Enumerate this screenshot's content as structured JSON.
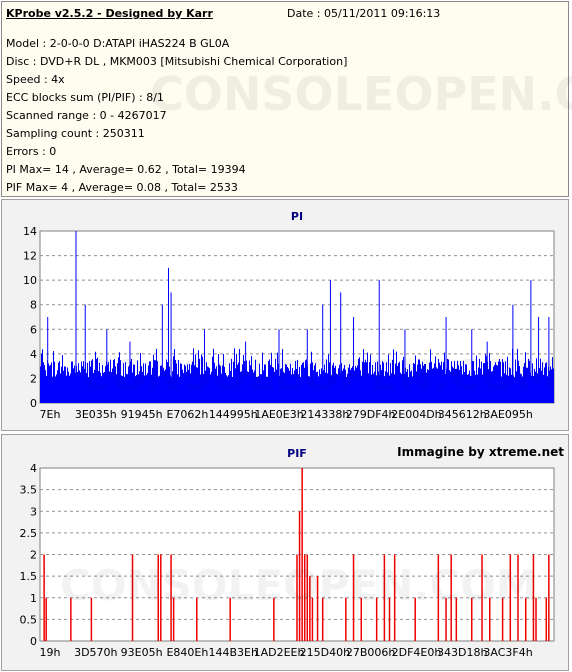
{
  "info": {
    "title": "KProbe v2.5.2 - Designed by Karr",
    "date": "Date : 05/11/2011 09:16:13",
    "lines": [
      "Model : 2-0-0-0 D:ATAPI  iHAS224   B      GL0A",
      "Disc : DVD+R DL , MKM003 [Mitsubishi Chemical Corporation]",
      "Speed : 4x",
      "ECC blocks sum (PI/PIF) : 8/1",
      "Scanned range : 0 - 4267017",
      "Sampling count : 250311",
      "Errors : 0",
      "PI Max= 14 , Average= 0.62 , Total= 19394",
      "PIF Max= 4 , Average= 0.08 , Total= 2533"
    ]
  },
  "watermark_text": "CONSOLEOPEN.COM",
  "chart_data": [
    {
      "type": "bar",
      "title": "PI",
      "series_color": "#0000ff",
      "ylim": [
        0,
        14
      ],
      "yticks": [
        0,
        2,
        4,
        6,
        8,
        10,
        12,
        14
      ],
      "xticks": [
        "7Eh",
        "3E035h",
        "91945h",
        "E7062h",
        "144995h",
        "1AE0E3h",
        "214338h",
        "279DF4h",
        "2E004Dh",
        "345612h",
        "3AE095h"
      ],
      "grid": true,
      "x_extent": 4267017,
      "peaks": [
        {
          "x": 0.07,
          "y": 14
        },
        {
          "x": 0.088,
          "y": 8
        },
        {
          "x": 0.25,
          "y": 11
        },
        {
          "x": 0.238,
          "y": 8
        },
        {
          "x": 0.255,
          "y": 9
        },
        {
          "x": 0.015,
          "y": 7
        },
        {
          "x": 0.13,
          "y": 6
        },
        {
          "x": 0.175,
          "y": 5
        },
        {
          "x": 0.32,
          "y": 6
        },
        {
          "x": 0.4,
          "y": 5
        },
        {
          "x": 0.465,
          "y": 6
        },
        {
          "x": 0.52,
          "y": 6
        },
        {
          "x": 0.55,
          "y": 8
        },
        {
          "x": 0.565,
          "y": 10
        },
        {
          "x": 0.585,
          "y": 9
        },
        {
          "x": 0.61,
          "y": 7
        },
        {
          "x": 0.66,
          "y": 10
        },
        {
          "x": 0.71,
          "y": 6
        },
        {
          "x": 0.79,
          "y": 7
        },
        {
          "x": 0.84,
          "y": 6
        },
        {
          "x": 0.87,
          "y": 5
        },
        {
          "x": 0.92,
          "y": 8
        },
        {
          "x": 0.955,
          "y": 10
        },
        {
          "x": 0.97,
          "y": 7
        },
        {
          "x": 0.99,
          "y": 7
        }
      ],
      "baseline_level": 3
    },
    {
      "type": "bar",
      "title": "PIF",
      "series_color": "#ee0000",
      "ylim": [
        0,
        4
      ],
      "yticks": [
        0,
        0.5,
        1,
        1.5,
        2,
        2.5,
        3,
        3.5,
        4
      ],
      "xticks": [
        "19h",
        "3D570h",
        "93E05h",
        "E840Eh",
        "144B3Eh",
        "1AD2EEh",
        "215D40h",
        "27B006h",
        "2DF4E0h",
        "343D18h",
        "3AC3F4h"
      ],
      "grid": true,
      "credit": "Immagine by xtreme.net",
      "x_extent": 4267017,
      "bars": [
        {
          "x": 0.008,
          "y": 2
        },
        {
          "x": 0.012,
          "y": 1
        },
        {
          "x": 0.06,
          "y": 1
        },
        {
          "x": 0.1,
          "y": 1
        },
        {
          "x": 0.18,
          "y": 2
        },
        {
          "x": 0.23,
          "y": 2
        },
        {
          "x": 0.235,
          "y": 2
        },
        {
          "x": 0.255,
          "y": 2
        },
        {
          "x": 0.26,
          "y": 1
        },
        {
          "x": 0.305,
          "y": 1
        },
        {
          "x": 0.37,
          "y": 1
        },
        {
          "x": 0.455,
          "y": 1
        },
        {
          "x": 0.5,
          "y": 2
        },
        {
          "x": 0.505,
          "y": 3
        },
        {
          "x": 0.51,
          "y": 4
        },
        {
          "x": 0.515,
          "y": 2
        },
        {
          "x": 0.52,
          "y": 2
        },
        {
          "x": 0.525,
          "y": 1.5
        },
        {
          "x": 0.53,
          "y": 1
        },
        {
          "x": 0.54,
          "y": 1.5
        },
        {
          "x": 0.55,
          "y": 1
        },
        {
          "x": 0.595,
          "y": 1
        },
        {
          "x": 0.61,
          "y": 2
        },
        {
          "x": 0.625,
          "y": 1
        },
        {
          "x": 0.655,
          "y": 1
        },
        {
          "x": 0.67,
          "y": 2
        },
        {
          "x": 0.68,
          "y": 1
        },
        {
          "x": 0.69,
          "y": 2
        },
        {
          "x": 0.73,
          "y": 1
        },
        {
          "x": 0.775,
          "y": 2
        },
        {
          "x": 0.79,
          "y": 1
        },
        {
          "x": 0.8,
          "y": 2
        },
        {
          "x": 0.81,
          "y": 1
        },
        {
          "x": 0.84,
          "y": 1
        },
        {
          "x": 0.86,
          "y": 2
        },
        {
          "x": 0.875,
          "y": 1
        },
        {
          "x": 0.9,
          "y": 1
        },
        {
          "x": 0.915,
          "y": 2
        },
        {
          "x": 0.93,
          "y": 2
        },
        {
          "x": 0.945,
          "y": 1
        },
        {
          "x": 0.96,
          "y": 2
        },
        {
          "x": 0.965,
          "y": 1
        },
        {
          "x": 0.985,
          "y": 1
        },
        {
          "x": 0.99,
          "y": 2
        }
      ]
    }
  ]
}
